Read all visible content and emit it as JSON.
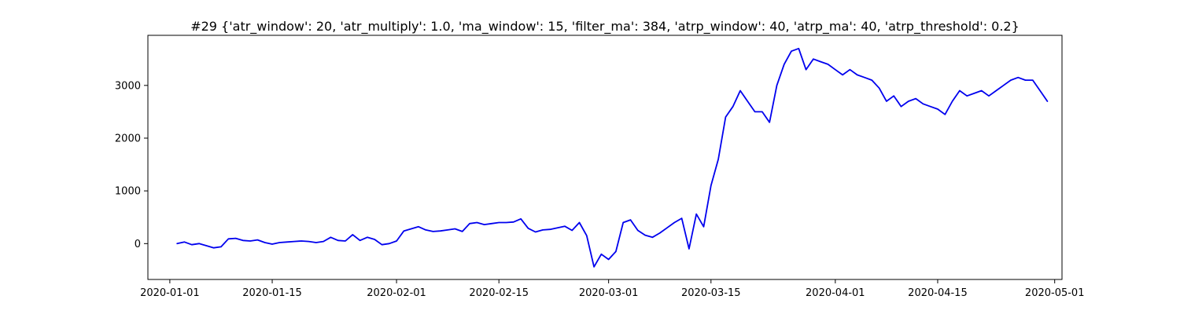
{
  "chart_data": {
    "type": "line",
    "title": "#29 {'atr_window': 20, 'atr_multiply': 1.0, 'ma_window': 15, 'filter_ma': 384, 'atrp_window': 40, 'atrp_ma': 40, 'atrp_threshold': 0.2}",
    "xlabel": "",
    "ylabel": "",
    "x_axis_type": "date",
    "xlim": [
      "2019-12-29",
      "2020-05-02"
    ],
    "ylim": [
      -680,
      3950
    ],
    "grid": false,
    "x_ticks": [
      "2020-01-01",
      "2020-01-15",
      "2020-02-01",
      "2020-02-15",
      "2020-03-01",
      "2020-03-15",
      "2020-04-01",
      "2020-04-15",
      "2020-05-01"
    ],
    "y_ticks": [
      0,
      1000,
      2000,
      3000
    ],
    "series": [
      {
        "color": "#0000ee",
        "x": [
          "2020-01-02",
          "2020-01-03",
          "2020-01-04",
          "2020-01-05",
          "2020-01-06",
          "2020-01-07",
          "2020-01-08",
          "2020-01-09",
          "2020-01-10",
          "2020-01-11",
          "2020-01-12",
          "2020-01-13",
          "2020-01-14",
          "2020-01-15",
          "2020-01-16",
          "2020-01-17",
          "2020-01-18",
          "2020-01-19",
          "2020-01-20",
          "2020-01-21",
          "2020-01-22",
          "2020-01-23",
          "2020-01-24",
          "2020-01-25",
          "2020-01-26",
          "2020-01-27",
          "2020-01-28",
          "2020-01-29",
          "2020-01-30",
          "2020-01-31",
          "2020-02-01",
          "2020-02-02",
          "2020-02-03",
          "2020-02-04",
          "2020-02-05",
          "2020-02-06",
          "2020-02-07",
          "2020-02-08",
          "2020-02-09",
          "2020-02-10",
          "2020-02-11",
          "2020-02-12",
          "2020-02-13",
          "2020-02-14",
          "2020-02-15",
          "2020-02-16",
          "2020-02-17",
          "2020-02-18",
          "2020-02-19",
          "2020-02-20",
          "2020-02-21",
          "2020-02-22",
          "2020-02-23",
          "2020-02-24",
          "2020-02-25",
          "2020-02-26",
          "2020-02-27",
          "2020-02-28",
          "2020-02-29",
          "2020-03-01",
          "2020-03-02",
          "2020-03-03",
          "2020-03-04",
          "2020-03-05",
          "2020-03-06",
          "2020-03-07",
          "2020-03-08",
          "2020-03-09",
          "2020-03-10",
          "2020-03-11",
          "2020-03-12",
          "2020-03-13",
          "2020-03-14",
          "2020-03-15",
          "2020-03-16",
          "2020-03-17",
          "2020-03-18",
          "2020-03-19",
          "2020-03-20",
          "2020-03-21",
          "2020-03-22",
          "2020-03-23",
          "2020-03-24",
          "2020-03-25",
          "2020-03-26",
          "2020-03-27",
          "2020-03-28",
          "2020-03-29",
          "2020-03-30",
          "2020-03-31",
          "2020-04-01",
          "2020-04-02",
          "2020-04-03",
          "2020-04-04",
          "2020-04-05",
          "2020-04-06",
          "2020-04-07",
          "2020-04-08",
          "2020-04-09",
          "2020-04-10",
          "2020-04-11",
          "2020-04-12",
          "2020-04-13",
          "2020-04-14",
          "2020-04-15",
          "2020-04-16",
          "2020-04-17",
          "2020-04-18",
          "2020-04-19",
          "2020-04-20",
          "2020-04-21",
          "2020-04-22",
          "2020-04-23",
          "2020-04-24",
          "2020-04-25",
          "2020-04-26",
          "2020-04-27",
          "2020-04-28",
          "2020-04-29",
          "2020-04-30"
        ],
        "y": [
          0,
          30,
          -20,
          0,
          -40,
          -80,
          -60,
          90,
          100,
          60,
          50,
          70,
          20,
          -10,
          20,
          30,
          40,
          50,
          40,
          20,
          40,
          120,
          60,
          50,
          170,
          60,
          120,
          80,
          -20,
          0,
          50,
          240,
          280,
          320,
          260,
          230,
          240,
          260,
          280,
          230,
          380,
          400,
          360,
          380,
          400,
          400,
          410,
          470,
          290,
          220,
          260,
          270,
          300,
          330,
          250,
          400,
          150,
          -440,
          -200,
          -300,
          -150,
          400,
          450,
          250,
          160,
          120,
          200,
          300,
          400,
          480,
          -100,
          560,
          320,
          1100,
          1600,
          2400,
          2600,
          2900,
          2700,
          2500,
          2500,
          2300,
          3000,
          3400,
          3650,
          3700,
          3300,
          3500,
          3450,
          3400,
          3300,
          3200,
          3300,
          3200,
          3150,
          3100,
          2950,
          2700,
          2800,
          2600,
          2700,
          2750,
          2650,
          2600,
          2550,
          2450,
          2700,
          2900,
          2800,
          2850,
          2900,
          2800,
          2900,
          3000,
          3100,
          3150,
          3100,
          3100,
          2900,
          2700
        ]
      }
    ]
  }
}
